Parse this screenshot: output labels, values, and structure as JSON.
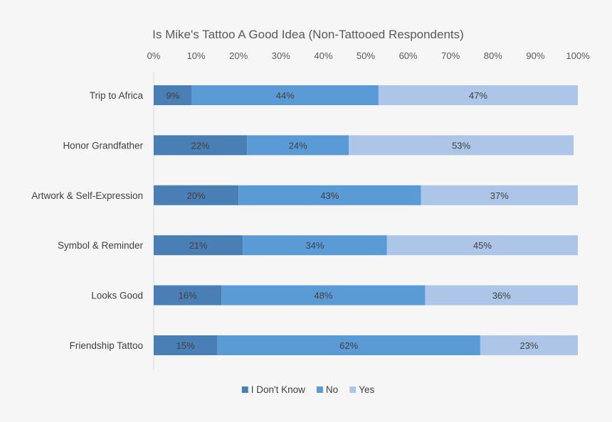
{
  "chart_data": {
    "type": "bar",
    "orientation": "horizontal",
    "stacked": true,
    "title": "Is Mike's Tattoo A Good Idea (Non-Tattooed Respondents)",
    "xlabel": "",
    "ylabel": "",
    "xlim": [
      0,
      100
    ],
    "x_axis_position": "top",
    "x_ticks": [
      "0%",
      "10%",
      "20%",
      "30%",
      "40%",
      "50%",
      "60%",
      "70%",
      "80%",
      "90%",
      "100%"
    ],
    "grid": false,
    "legend_position": "bottom",
    "categories": [
      "Trip to Africa",
      "Honor Grandfather",
      "Artwork & Self-Expression",
      "Symbol & Reminder",
      "Looks Good",
      "Friendship Tattoo"
    ],
    "series": [
      {
        "name": "I Don't Know",
        "color": "#4a7fb5",
        "values": [
          9,
          22,
          20,
          21,
          16,
          15
        ],
        "labels": [
          "9%",
          "22%",
          "20%",
          "21%",
          "16%",
          "15%"
        ]
      },
      {
        "name": "No",
        "color": "#5b9bd5",
        "values": [
          44,
          24,
          43,
          34,
          48,
          62
        ],
        "labels": [
          "44%",
          "24%",
          "43%",
          "34%",
          "48%",
          "62%"
        ]
      },
      {
        "name": "Yes",
        "color": "#adc6e8",
        "values": [
          47,
          53,
          37,
          45,
          36,
          23
        ],
        "labels": [
          "47%",
          "53%",
          "37%",
          "45%",
          "36%",
          "23%"
        ]
      }
    ]
  }
}
